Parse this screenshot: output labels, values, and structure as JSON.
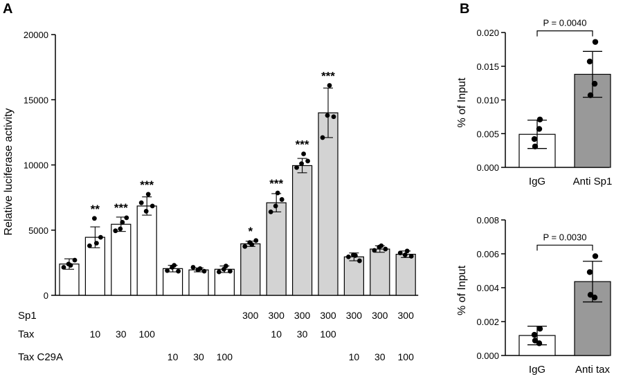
{
  "figure": {
    "panel_a_letter": "A",
    "panel_b_letter": "B"
  },
  "chart_data": [
    {
      "type": "bar",
      "panel": "A",
      "ylabel": "Relative luciferase activity",
      "ylim": [
        0,
        20000
      ],
      "yticks": [
        0,
        5000,
        10000,
        15000,
        20000
      ],
      "grid": false,
      "bar_colors": [
        "#ffffff",
        "#ffffff",
        "#ffffff",
        "#ffffff",
        "#ffffff",
        "#ffffff",
        "#ffffff",
        "#d3d3d3",
        "#d3d3d3",
        "#d3d3d3",
        "#d3d3d3",
        "#d3d3d3",
        "#d3d3d3",
        "#d3d3d3"
      ],
      "values": [
        2400,
        4450,
        5450,
        6850,
        2050,
        1950,
        2000,
        3950,
        7100,
        9950,
        14000,
        2950,
        3550,
        3150
      ],
      "errors": [
        400,
        800,
        550,
        700,
        250,
        150,
        250,
        200,
        700,
        550,
        1900,
        300,
        250,
        250
      ],
      "points": [
        [
          2300,
          2700,
          2150,
          2400
        ],
        [
          4000,
          4450,
          3800,
          5900
        ],
        [
          5600,
          5950,
          4950,
          5100
        ],
        [
          7750,
          6850,
          7100,
          6450
        ],
        [
          2300,
          1850,
          1900,
          2150
        ],
        [
          2050,
          1850,
          2150,
          1950
        ],
        [
          2250,
          1850,
          1800,
          2000
        ],
        [
          3900,
          4200,
          3750,
          4050
        ],
        [
          7850,
          7350,
          6400,
          6850
        ],
        [
          10850,
          10300,
          9800,
          10100
        ],
        [
          16100,
          13700,
          12100,
          13800
        ],
        [
          3050,
          2650,
          2950,
          3100
        ],
        [
          3800,
          3550,
          3450,
          3700
        ],
        [
          3400,
          3000,
          3250,
          3100
        ]
      ],
      "significance": [
        "",
        "**",
        "***",
        "***",
        "",
        "",
        "",
        "*",
        "***",
        "***",
        "***",
        "",
        "",
        ""
      ],
      "condition_rows": [
        {
          "label": "Sp1",
          "values": [
            "",
            "",
            "",
            "",
            "",
            "",
            "",
            "300",
            "300",
            "300",
            "300",
            "300",
            "300",
            "300"
          ]
        },
        {
          "label": "Tax",
          "values": [
            "",
            "10",
            "30",
            "100",
            "",
            "",
            "",
            "",
            "10",
            "30",
            "100",
            "",
            "",
            ""
          ]
        },
        {
          "label": "Tax C29A",
          "values": [
            "",
            "",
            "",
            "",
            "10",
            "30",
            "100",
            "",
            "",
            "",
            "",
            "10",
            "30",
            "100"
          ]
        }
      ]
    },
    {
      "type": "bar",
      "panel": "B-top",
      "categories": [
        "IgG",
        "Anti Sp1"
      ],
      "ylabel": "% of Input",
      "ylim": [
        0,
        0.02
      ],
      "yticks": [
        "0.000",
        "0.005",
        "0.010",
        "0.015",
        "0.020"
      ],
      "bar_colors": [
        "#ffffff",
        "#999999"
      ],
      "values": [
        0.0049,
        0.0138
      ],
      "errors": [
        0.0021,
        0.0034
      ],
      "points": [
        [
          0.0071,
          0.0042,
          0.0057,
          0.0031
        ],
        [
          0.0186,
          0.0157,
          0.0124,
          0.0107
        ]
      ],
      "pvalue_label": "P = 0.0040"
    },
    {
      "type": "bar",
      "panel": "B-bottom",
      "categories": [
        "IgG",
        "Anti tax"
      ],
      "ylabel": "% of Input",
      "ylim": [
        0,
        0.008
      ],
      "yticks": [
        "0.000",
        "0.002",
        "0.004",
        "0.006",
        "0.008"
      ],
      "bar_colors": [
        "#ffffff",
        "#999999"
      ],
      "values": [
        0.00118,
        0.00436
      ],
      "errors": [
        0.00055,
        0.0012
      ],
      "points": [
        [
          0.00158,
          0.00122,
          0.00072,
          0.00088
        ],
        [
          0.00586,
          0.00492,
          0.00342,
          0.00358
        ]
      ],
      "pvalue_label": "P = 0.0030"
    }
  ]
}
